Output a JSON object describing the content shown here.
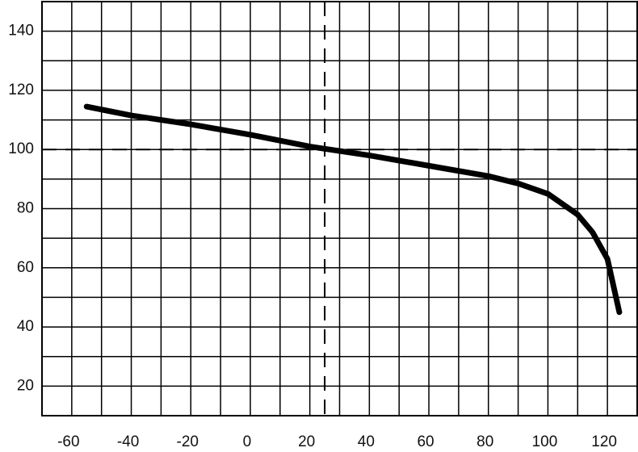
{
  "chart_data": {
    "type": "line",
    "x": [
      -55,
      -40,
      -20,
      0,
      20,
      40,
      60,
      80,
      90,
      100,
      110,
      115,
      120,
      124
    ],
    "values": [
      114.5,
      111.5,
      108.5,
      105,
      101,
      98,
      94.5,
      91,
      88.5,
      85,
      78,
      72,
      63,
      45
    ],
    "color": "#000000",
    "xlim": [
      -70,
      130
    ],
    "ylim": [
      10,
      150
    ],
    "xticks": [
      -60,
      -40,
      -20,
      0,
      20,
      40,
      60,
      80,
      100,
      120
    ],
    "yticks": [
      20,
      40,
      60,
      80,
      100,
      120,
      140
    ],
    "xminor": [
      -70,
      -50,
      -30,
      -10,
      10,
      30,
      50,
      70,
      90,
      110,
      130
    ],
    "yminor": [
      10,
      30,
      50,
      70,
      90,
      110,
      130,
      150
    ],
    "hlines": [
      100
    ],
    "vlines": [
      25
    ],
    "grid": true
  }
}
